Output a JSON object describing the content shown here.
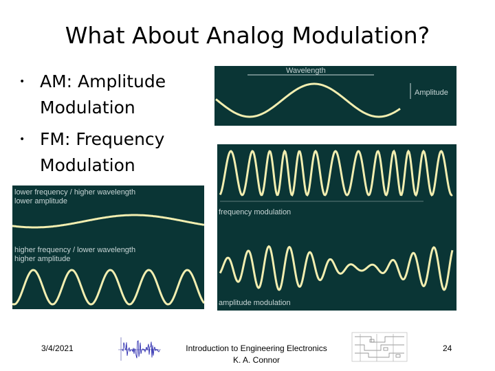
{
  "slide": {
    "title": "What About Analog Modulation?",
    "bullets": [
      {
        "bullet_glyph": "•",
        "text": "AM: Amplitude Modulation"
      },
      {
        "bullet_glyph": "•",
        "text": "FM: Frequency Modulation"
      }
    ]
  },
  "wave_diagram": {
    "wavelength_label": "Wavelength",
    "amplitude_label": "Amplitude"
  },
  "amplitude_compare": {
    "low_line1": "lower frequency / higher wavelength",
    "low_line2": "lower amplitude",
    "high_line1": "higher frequency / lower wavelength",
    "high_line2": "higher amplitude"
  },
  "modulation_diagram": {
    "fm_label": "frequency modulation",
    "am_label": "amplitude modulation"
  },
  "footer": {
    "date": "3/4/2021",
    "course": "Introduction to Engineering Electronics",
    "author": "K. A. Connor",
    "page": "24"
  },
  "colors": {
    "panel_bg": "#0a3535",
    "wave": "#f2eeb0",
    "label": "#c8d6d6"
  }
}
